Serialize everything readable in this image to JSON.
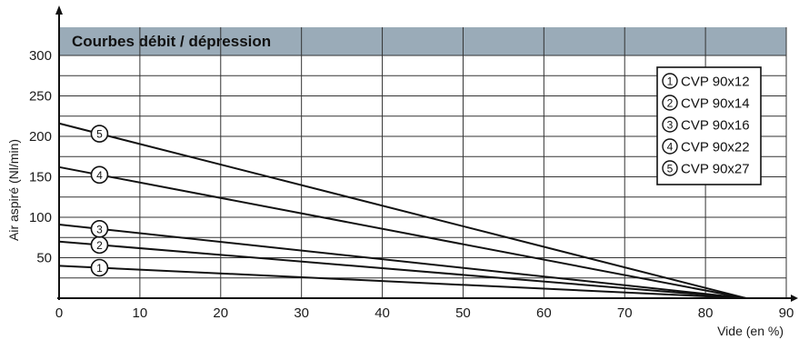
{
  "chart_data": {
    "type": "line",
    "title": "Courbes débit / dépression",
    "xlabel": "Vide (en %)",
    "ylabel": "Air aspiré (Nl/min)",
    "xlim": [
      0,
      90
    ],
    "ylim": [
      0,
      300
    ],
    "x_ticks": [
      0,
      10,
      20,
      30,
      40,
      50,
      60,
      70,
      80,
      90
    ],
    "y_ticks": [
      50,
      100,
      150,
      200,
      250,
      300
    ],
    "grid": true,
    "legend_position": "top-right",
    "title_band_color": "#9aabb8",
    "series": [
      {
        "name": "CVP 90x12",
        "marker": "1",
        "x": [
          0,
          85
        ],
        "y": [
          40,
          0
        ],
        "marker_x": 5
      },
      {
        "name": "CVP 90x14",
        "marker": "2",
        "x": [
          0,
          85
        ],
        "y": [
          70,
          0
        ],
        "marker_x": 5
      },
      {
        "name": "CVP 90x16",
        "marker": "3",
        "x": [
          0,
          85
        ],
        "y": [
          91,
          0
        ],
        "marker_x": 5
      },
      {
        "name": "CVP 90x22",
        "marker": "4",
        "x": [
          0,
          85
        ],
        "y": [
          162,
          0
        ],
        "marker_x": 5
      },
      {
        "name": "CVP 90x27",
        "marker": "5",
        "x": [
          0,
          85
        ],
        "y": [
          216,
          0
        ],
        "marker_x": 5
      }
    ]
  }
}
